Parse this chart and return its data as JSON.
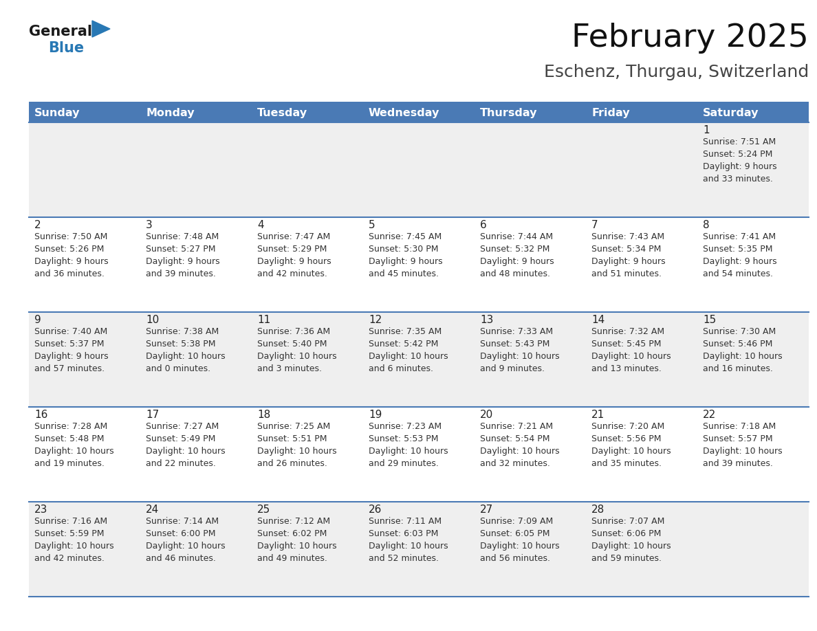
{
  "title": "February 2025",
  "subtitle": "Eschenz, Thurgau, Switzerland",
  "days_of_week": [
    "Sunday",
    "Monday",
    "Tuesday",
    "Wednesday",
    "Thursday",
    "Friday",
    "Saturday"
  ],
  "header_bg": "#4a7ab5",
  "header_text": "#ffffff",
  "row_bg_odd": "#efefef",
  "row_bg_even": "#ffffff",
  "divider_color": "#4a7ab5",
  "text_color": "#333333",
  "day_number_color": "#222222",
  "title_color": "#111111",
  "subtitle_color": "#444444",
  "calendar_data": [
    [
      null,
      null,
      null,
      null,
      null,
      null,
      {
        "day": "1",
        "sunrise": "7:51 AM",
        "sunset": "5:24 PM",
        "daylight": "9 hours\nand 33 minutes."
      }
    ],
    [
      {
        "day": "2",
        "sunrise": "7:50 AM",
        "sunset": "5:26 PM",
        "daylight": "9 hours\nand 36 minutes."
      },
      {
        "day": "3",
        "sunrise": "7:48 AM",
        "sunset": "5:27 PM",
        "daylight": "9 hours\nand 39 minutes."
      },
      {
        "day": "4",
        "sunrise": "7:47 AM",
        "sunset": "5:29 PM",
        "daylight": "9 hours\nand 42 minutes."
      },
      {
        "day": "5",
        "sunrise": "7:45 AM",
        "sunset": "5:30 PM",
        "daylight": "9 hours\nand 45 minutes."
      },
      {
        "day": "6",
        "sunrise": "7:44 AM",
        "sunset": "5:32 PM",
        "daylight": "9 hours\nand 48 minutes."
      },
      {
        "day": "7",
        "sunrise": "7:43 AM",
        "sunset": "5:34 PM",
        "daylight": "9 hours\nand 51 minutes."
      },
      {
        "day": "8",
        "sunrise": "7:41 AM",
        "sunset": "5:35 PM",
        "daylight": "9 hours\nand 54 minutes."
      }
    ],
    [
      {
        "day": "9",
        "sunrise": "7:40 AM",
        "sunset": "5:37 PM",
        "daylight": "9 hours\nand 57 minutes."
      },
      {
        "day": "10",
        "sunrise": "7:38 AM",
        "sunset": "5:38 PM",
        "daylight": "10 hours\nand 0 minutes."
      },
      {
        "day": "11",
        "sunrise": "7:36 AM",
        "sunset": "5:40 PM",
        "daylight": "10 hours\nand 3 minutes."
      },
      {
        "day": "12",
        "sunrise": "7:35 AM",
        "sunset": "5:42 PM",
        "daylight": "10 hours\nand 6 minutes."
      },
      {
        "day": "13",
        "sunrise": "7:33 AM",
        "sunset": "5:43 PM",
        "daylight": "10 hours\nand 9 minutes."
      },
      {
        "day": "14",
        "sunrise": "7:32 AM",
        "sunset": "5:45 PM",
        "daylight": "10 hours\nand 13 minutes."
      },
      {
        "day": "15",
        "sunrise": "7:30 AM",
        "sunset": "5:46 PM",
        "daylight": "10 hours\nand 16 minutes."
      }
    ],
    [
      {
        "day": "16",
        "sunrise": "7:28 AM",
        "sunset": "5:48 PM",
        "daylight": "10 hours\nand 19 minutes."
      },
      {
        "day": "17",
        "sunrise": "7:27 AM",
        "sunset": "5:49 PM",
        "daylight": "10 hours\nand 22 minutes."
      },
      {
        "day": "18",
        "sunrise": "7:25 AM",
        "sunset": "5:51 PM",
        "daylight": "10 hours\nand 26 minutes."
      },
      {
        "day": "19",
        "sunrise": "7:23 AM",
        "sunset": "5:53 PM",
        "daylight": "10 hours\nand 29 minutes."
      },
      {
        "day": "20",
        "sunrise": "7:21 AM",
        "sunset": "5:54 PM",
        "daylight": "10 hours\nand 32 minutes."
      },
      {
        "day": "21",
        "sunrise": "7:20 AM",
        "sunset": "5:56 PM",
        "daylight": "10 hours\nand 35 minutes."
      },
      {
        "day": "22",
        "sunrise": "7:18 AM",
        "sunset": "5:57 PM",
        "daylight": "10 hours\nand 39 minutes."
      }
    ],
    [
      {
        "day": "23",
        "sunrise": "7:16 AM",
        "sunset": "5:59 PM",
        "daylight": "10 hours\nand 42 minutes."
      },
      {
        "day": "24",
        "sunrise": "7:14 AM",
        "sunset": "6:00 PM",
        "daylight": "10 hours\nand 46 minutes."
      },
      {
        "day": "25",
        "sunrise": "7:12 AM",
        "sunset": "6:02 PM",
        "daylight": "10 hours\nand 49 minutes."
      },
      {
        "day": "26",
        "sunrise": "7:11 AM",
        "sunset": "6:03 PM",
        "daylight": "10 hours\nand 52 minutes."
      },
      {
        "day": "27",
        "sunrise": "7:09 AM",
        "sunset": "6:05 PM",
        "daylight": "10 hours\nand 56 minutes."
      },
      {
        "day": "28",
        "sunrise": "7:07 AM",
        "sunset": "6:06 PM",
        "daylight": "10 hours\nand 59 minutes."
      },
      null
    ]
  ],
  "logo_text_general": "General",
  "logo_text_blue": "Blue",
  "logo_color_general": "#1a1a1a",
  "logo_color_blue": "#2878b4",
  "logo_triangle_color": "#2878b4",
  "figwidth": 11.88,
  "figheight": 9.18,
  "dpi": 100
}
